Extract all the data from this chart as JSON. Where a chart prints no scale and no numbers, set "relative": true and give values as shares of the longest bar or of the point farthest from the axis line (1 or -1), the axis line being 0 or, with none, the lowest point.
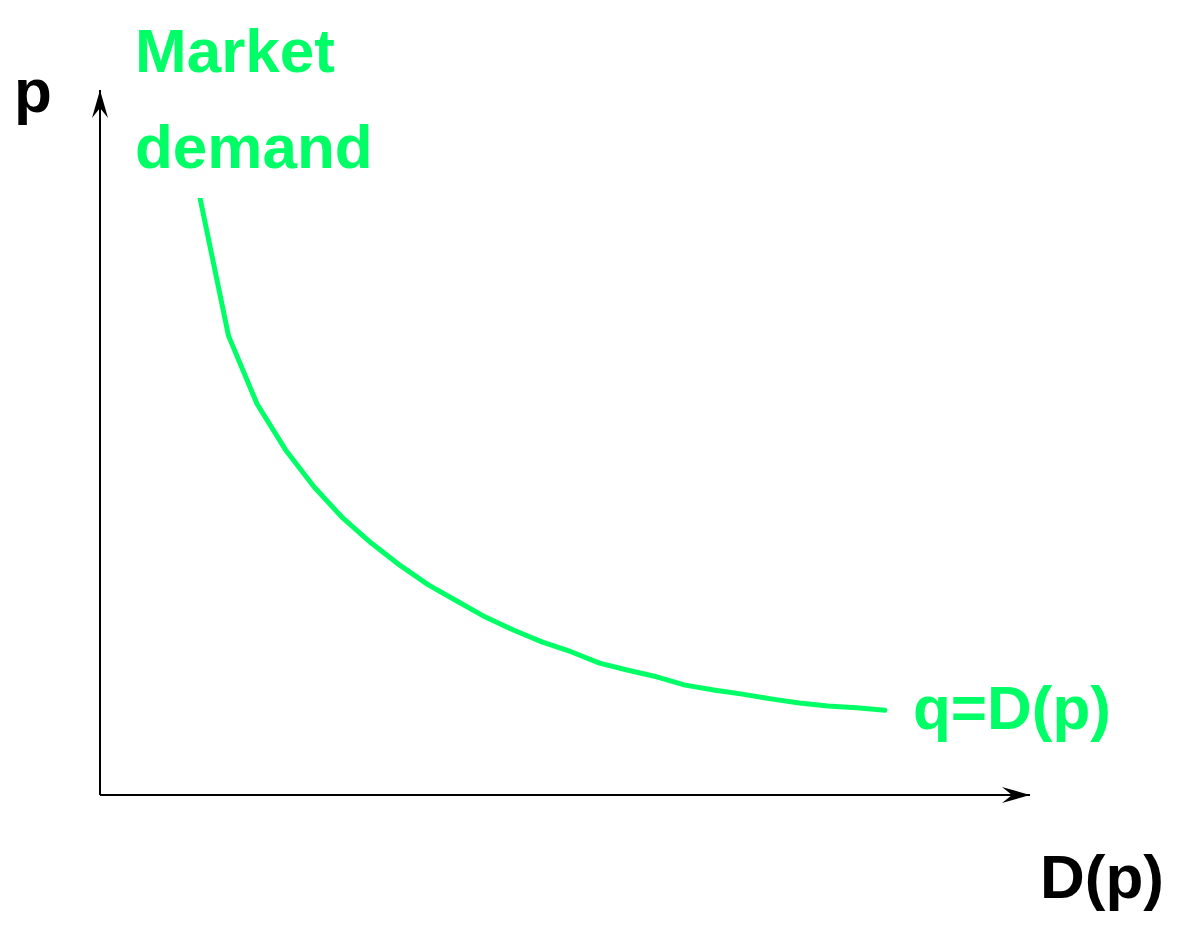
{
  "chart_data": {
    "type": "line",
    "relative": true,
    "xlabel": "D(p)",
    "ylabel": "p",
    "categories": [
      null,
      null,
      null,
      null,
      null,
      null,
      null,
      null,
      null,
      null,
      null,
      null,
      null,
      null,
      null,
      null,
      null,
      null,
      null,
      null,
      null,
      null,
      null,
      null,
      null
    ],
    "series": [
      {
        "color": "#00ff66",
        "values": [
          1,
          0.769,
          0.655,
          0.578,
          0.516,
          0.464,
          0.422,
          0.385,
          0.352,
          0.325,
          0.298,
          0.276,
          0.256,
          0.24,
          0.221,
          0.209,
          0.198,
          0.184,
          0.176,
          0.169,
          0.161,
          0.154,
          0.149,
          0.146,
          0.142
        ]
      }
    ],
    "annotations": [
      "Market demand",
      "q=D(p)"
    ]
  }
}
